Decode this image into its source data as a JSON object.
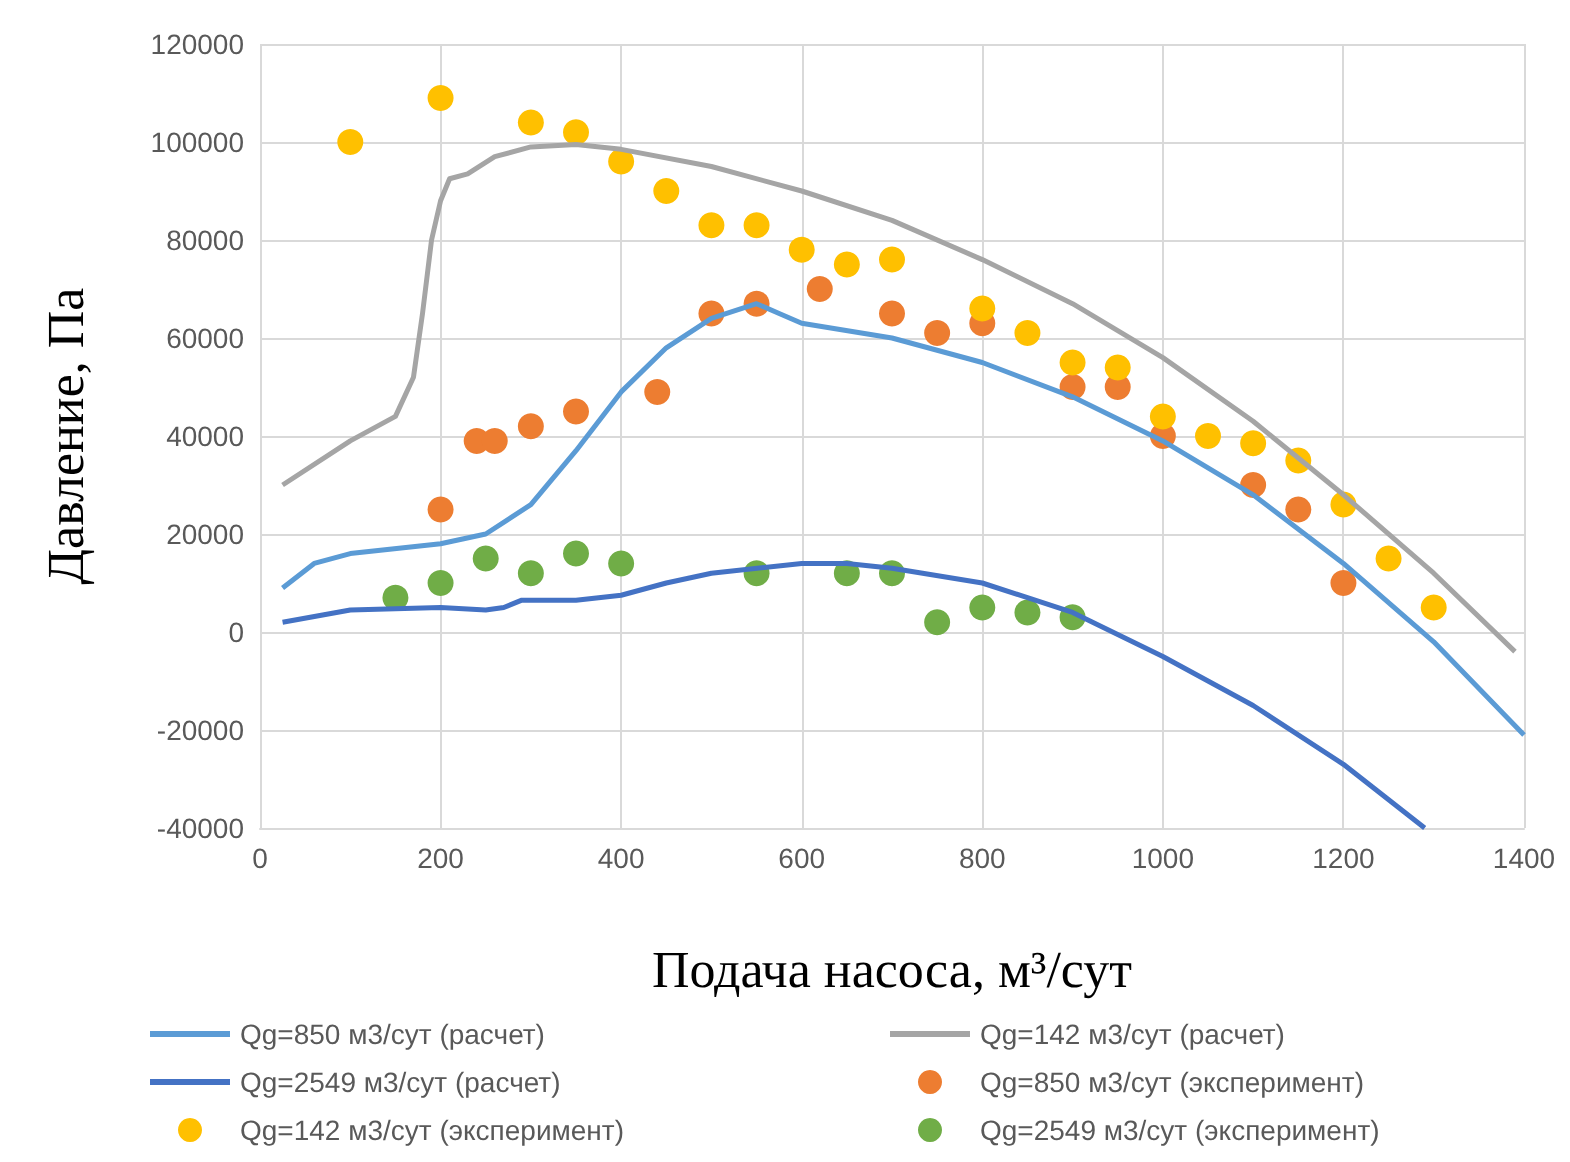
{
  "chart_data": {
    "type": "line",
    "xlabel": "Подача насоса, м³/сут",
    "ylabel": "Давление, Па",
    "xlim": [
      0,
      1400
    ],
    "xticks": [
      0,
      200,
      400,
      600,
      800,
      1000,
      1200,
      1400
    ],
    "ylim": [
      -40000,
      120000
    ],
    "yticks": [
      -40000,
      -20000,
      0,
      20000,
      40000,
      60000,
      80000,
      100000,
      120000
    ],
    "grid": true,
    "legend": "bottom",
    "series": [
      {
        "name": "Qg=850 м3/сут (расчет)",
        "color": "#5b9bd5",
        "x": [
          25,
          60,
          100,
          200,
          250,
          300,
          350,
          400,
          450,
          500,
          550,
          575,
          600,
          700,
          800,
          900,
          1000,
          1100,
          1200,
          1300,
          1400
        ],
        "values": [
          9000,
          14000,
          16000,
          18000,
          20000,
          26000,
          37000,
          49000,
          58000,
          64000,
          67000,
          65000,
          63000,
          60000,
          55000,
          48000,
          39000,
          28000,
          14000,
          -2000,
          -21000
        ]
      },
      {
        "name": "Qg=142 м3/сут (расчет)",
        "color": "#a5a5a5",
        "x": [
          25,
          100,
          150,
          170,
          180,
          190,
          200,
          210,
          230,
          260,
          300,
          350,
          400,
          500,
          600,
          700,
          800,
          900,
          1000,
          1100,
          1200,
          1300,
          1390
        ],
        "values": [
          30000,
          39000,
          44000,
          52000,
          65000,
          80000,
          88000,
          92500,
          93500,
          97000,
          99000,
          99500,
          98500,
          95000,
          90000,
          84000,
          76000,
          67000,
          56000,
          43000,
          28000,
          12000,
          -4000
        ]
      },
      {
        "name": "Qg=2549 м3/сут (расчет)",
        "color": "#4472c4",
        "x": [
          25,
          100,
          200,
          250,
          270,
          290,
          350,
          400,
          450,
          500,
          600,
          650,
          700,
          800,
          900,
          1000,
          1100,
          1200,
          1290
        ],
        "values": [
          2000,
          4500,
          5000,
          4500,
          5000,
          6500,
          6500,
          7500,
          10000,
          12000,
          14000,
          14000,
          13000,
          10000,
          4000,
          -5000,
          -15000,
          -27000,
          -40000
        ]
      },
      {
        "name": "Qg=850 м3/сут (эксперимент)",
        "type": "scatter",
        "color": "#ed7d31",
        "x": [
          200,
          240,
          260,
          300,
          350,
          440,
          500,
          550,
          620,
          700,
          750,
          800,
          900,
          950,
          1000,
          1100,
          1150,
          1200
        ],
        "values": [
          25000,
          39000,
          39000,
          42000,
          45000,
          49000,
          65000,
          67000,
          70000,
          65000,
          61000,
          63000,
          50000,
          50000,
          40000,
          30000,
          25000,
          10000
        ]
      },
      {
        "name": "Qg=142 м3/сут (эксперимент)",
        "type": "scatter",
        "color": "#ffc000",
        "x": [
          100,
          200,
          300,
          350,
          400,
          450,
          500,
          550,
          600,
          650,
          700,
          800,
          850,
          900,
          950,
          1000,
          1050,
          1100,
          1150,
          1200,
          1250,
          1300
        ],
        "values": [
          100000,
          109000,
          104000,
          102000,
          96000,
          90000,
          83000,
          83000,
          78000,
          75000,
          76000,
          66000,
          61000,
          55000,
          54000,
          44000,
          40000,
          38500,
          35000,
          26000,
          15000,
          5000
        ]
      },
      {
        "name": "Qg=2549 м3/сут (эксперимент)",
        "type": "scatter",
        "color": "#70ad47",
        "x": [
          150,
          200,
          250,
          300,
          350,
          400,
          550,
          650,
          700,
          750,
          800,
          850,
          900
        ],
        "values": [
          7000,
          10000,
          15000,
          12000,
          16000,
          14000,
          12000,
          12000,
          12000,
          2000,
          5000,
          4000,
          3000
        ]
      }
    ]
  }
}
